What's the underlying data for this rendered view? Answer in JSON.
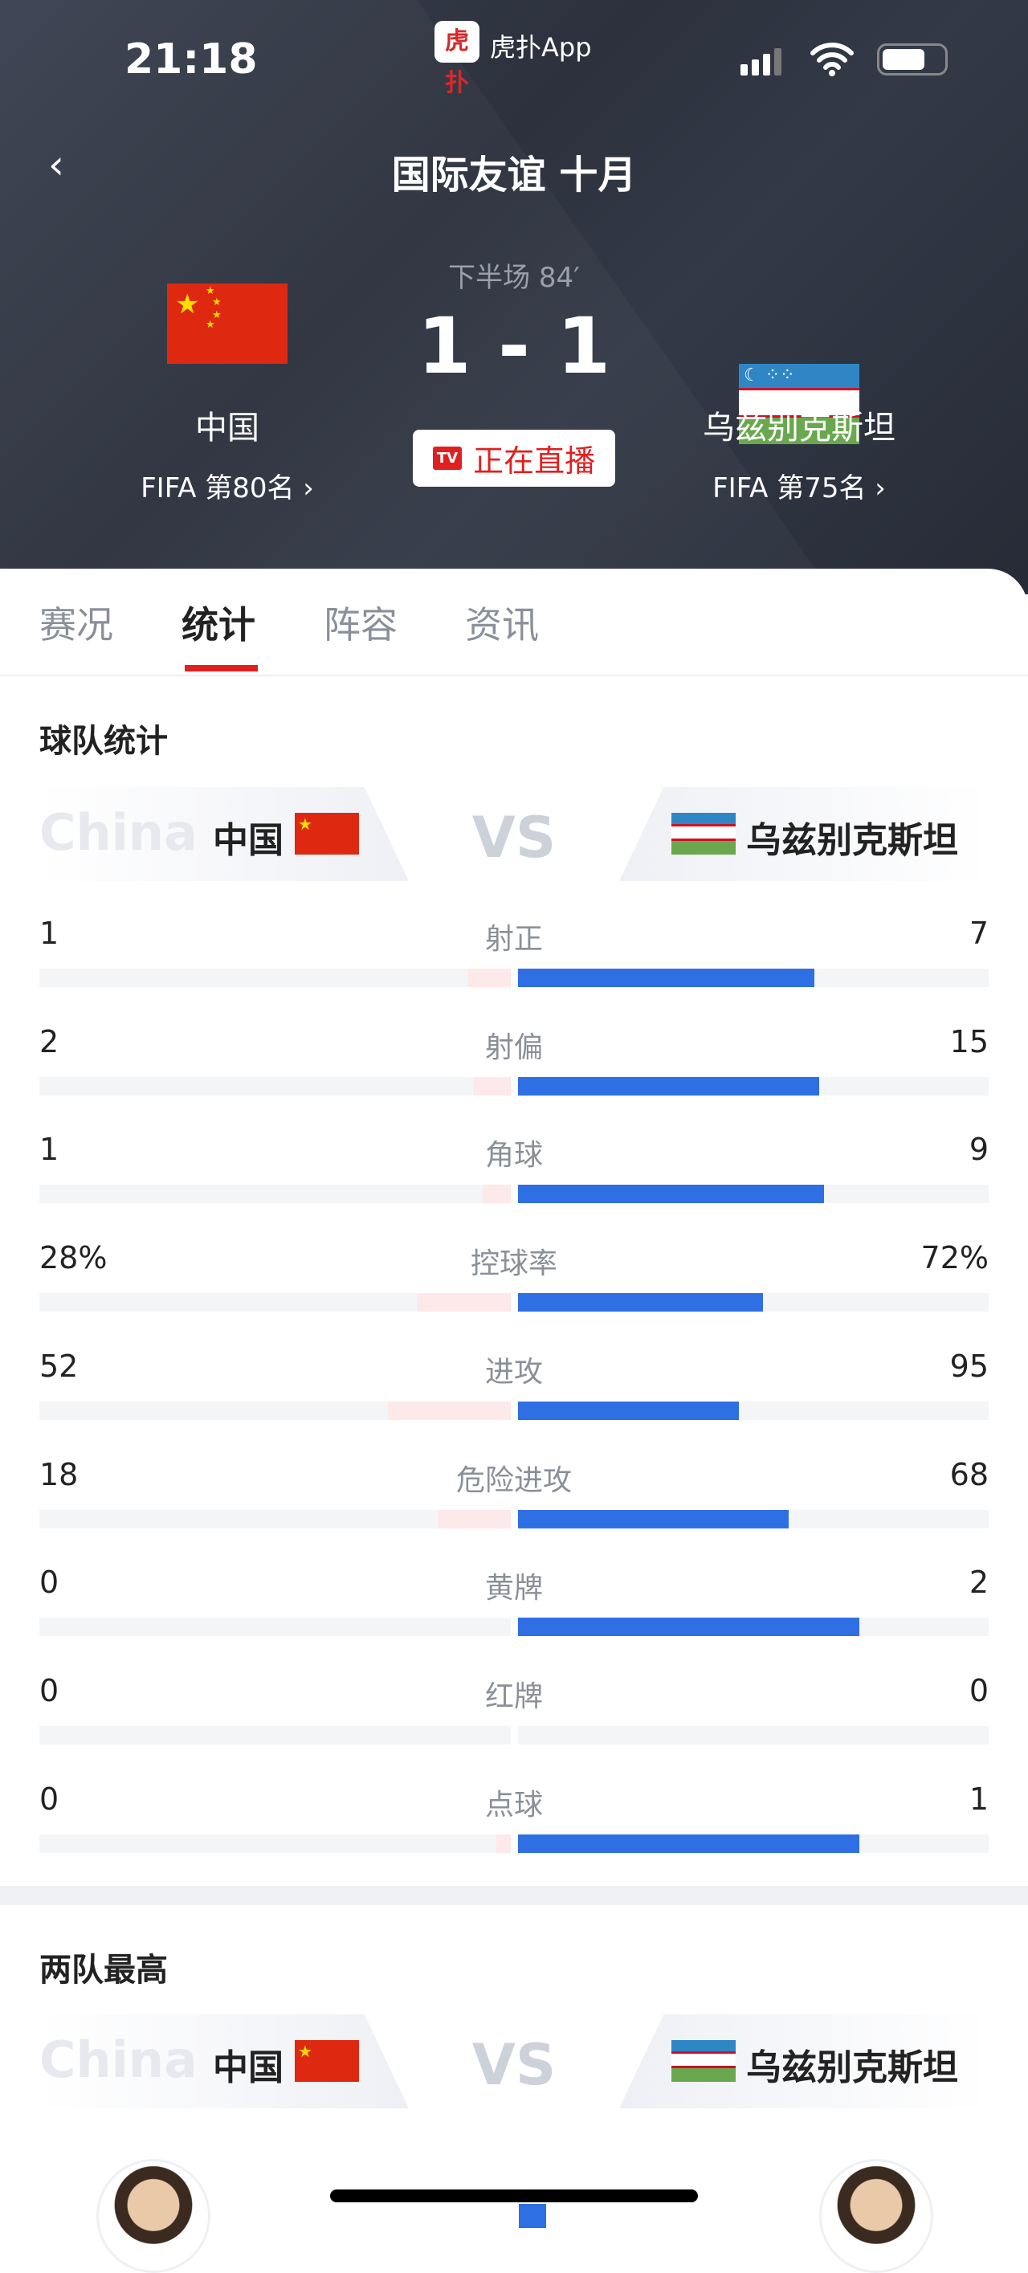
{
  "status": {
    "time": "21:18",
    "app_logo": "虎扑",
    "app_name": "虎扑App",
    "icons": [
      "signal-icon",
      "wifi-icon",
      "battery-icon"
    ]
  },
  "header": {
    "title": "国际友谊 十月",
    "back_icon": "chevron-left-icon"
  },
  "match": {
    "period": "下半场 84′",
    "score": "1 - 1",
    "live_badge": "TV",
    "live_label": "正在直播",
    "home": {
      "name": "中国",
      "rank": "FIFA 第80名 ›"
    },
    "away": {
      "name": "乌兹别克斯坦",
      "rank": "FIFA 第75名 ›"
    }
  },
  "tabs": [
    {
      "label": "赛况"
    },
    {
      "label": "统计",
      "active": true
    },
    {
      "label": "阵容"
    },
    {
      "label": "资讯"
    }
  ],
  "team_stats": {
    "title": "球队统计",
    "home_ghost": "China",
    "home": "中国",
    "vs": "VS",
    "away": "乌兹别克斯坦",
    "rows": [
      {
        "label": "射正",
        "home": "1",
        "away": "7",
        "home_fill": 0.09,
        "away_fill": 0.63
      },
      {
        "label": "射偏",
        "home": "2",
        "away": "15",
        "home_fill": 0.08,
        "away_fill": 0.64
      },
      {
        "label": "角球",
        "home": "1",
        "away": "9",
        "home_fill": 0.06,
        "away_fill": 0.65
      },
      {
        "label": "控球率",
        "home": "28%",
        "away": "72%",
        "home_fill": 0.2,
        "away_fill": 0.52
      },
      {
        "label": "进攻",
        "home": "52",
        "away": "95",
        "home_fill": 0.26,
        "away_fill": 0.47
      },
      {
        "label": "危险进攻",
        "home": "18",
        "away": "68",
        "home_fill": 0.155,
        "away_fill": 0.575
      },
      {
        "label": "黄牌",
        "home": "0",
        "away": "2",
        "home_fill": 0,
        "away_fill": 0.725
      },
      {
        "label": "红牌",
        "home": "0",
        "away": "0",
        "home_fill": 0,
        "away_fill": 0
      },
      {
        "label": "点球",
        "home": "0",
        "away": "1",
        "home_fill": 0.03,
        "away_fill": 0.725
      }
    ]
  },
  "top_players": {
    "title": "两队最高",
    "home_ghost": "China",
    "home": "中国",
    "vs": "VS",
    "away": "乌兹别克斯坦"
  },
  "colors": {
    "home_bar": "#fde9ea",
    "away_bar": "#2f6fe4",
    "accent": "#e02020",
    "header_bg": "#2f3441"
  }
}
